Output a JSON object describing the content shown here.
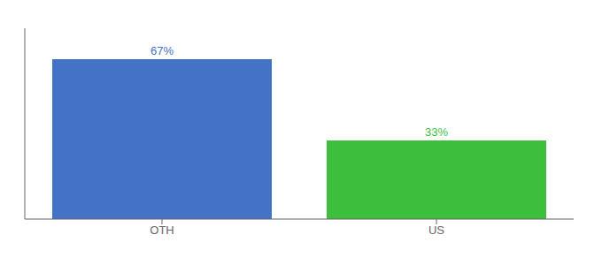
{
  "chart_data": {
    "type": "bar",
    "categories": [
      "OTH",
      "US"
    ],
    "values": [
      67,
      33
    ],
    "value_labels": [
      "67%",
      "33%"
    ],
    "colors": [
      "#4472c4",
      "#3dbf3d"
    ],
    "ylim": [
      0,
      80
    ],
    "data_labels": true,
    "tick_labels": "x",
    "grid": false
  }
}
